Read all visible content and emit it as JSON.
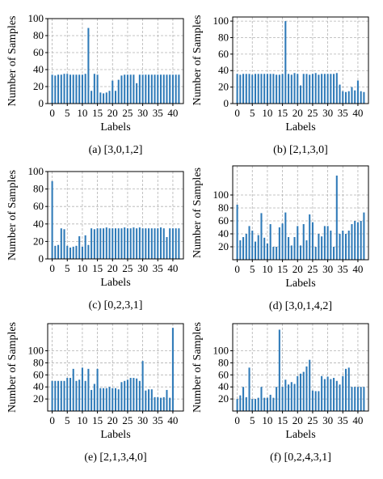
{
  "colors": {
    "bar": "#2e7ab8",
    "grid": "#b3b3b3",
    "axis": "#000000"
  },
  "chart_data": [
    {
      "type": "bar",
      "caption": "(a) [3,0,1,2]",
      "xlabel": "Labels",
      "ylabel": "Number of Samples",
      "xticks": [
        0,
        5,
        10,
        15,
        20,
        25,
        30,
        35,
        40
      ],
      "yticks": [
        0,
        20,
        40,
        60,
        80,
        100
      ],
      "xlim": [
        -1.5,
        43.5
      ],
      "ylim": [
        0,
        100
      ],
      "grid": true,
      "values": [
        34,
        33,
        34,
        34,
        35,
        35,
        34,
        34,
        34,
        34,
        34,
        35,
        89,
        15,
        35,
        34,
        13,
        12,
        13,
        15,
        27,
        15,
        28,
        33,
        34,
        34,
        34,
        34,
        24,
        34,
        34,
        34,
        34,
        34,
        34,
        34,
        34,
        34,
        34,
        34,
        34,
        34,
        34
      ]
    },
    {
      "type": "bar",
      "caption": "(b) [2,1,3,0]",
      "xlabel": "Labels",
      "ylabel": "Number of Samples",
      "xticks": [
        0,
        5,
        10,
        15,
        20,
        25,
        30,
        35,
        40
      ],
      "yticks": [
        0,
        20,
        40,
        60,
        80,
        100
      ],
      "xlim": [
        -1.5,
        43.5
      ],
      "ylim": [
        0,
        105
      ],
      "grid": true,
      "values": [
        36,
        35,
        36,
        36,
        36,
        35,
        36,
        36,
        36,
        36,
        36,
        36,
        36,
        35,
        35,
        36,
        100,
        36,
        35,
        37,
        36,
        22,
        36,
        36,
        35,
        36,
        37,
        35,
        36,
        36,
        36,
        36,
        36,
        37,
        23,
        15,
        14,
        15,
        20,
        16,
        28,
        15,
        14
      ]
    },
    {
      "type": "bar",
      "caption": "(c) [0,2,3,1]",
      "xlabel": "Labels",
      "ylabel": "Number of Samples",
      "xticks": [
        0,
        5,
        10,
        15,
        20,
        25,
        30,
        35,
        40
      ],
      "yticks": [
        0,
        20,
        40,
        60,
        80,
        100
      ],
      "xlim": [
        -1.5,
        43.5
      ],
      "ylim": [
        0,
        100
      ],
      "grid": true,
      "values": [
        89,
        15,
        16,
        35,
        34,
        15,
        13,
        14,
        15,
        26,
        14,
        27,
        16,
        35,
        34,
        35,
        35,
        35,
        36,
        35,
        35,
        35,
        35,
        35,
        36,
        35,
        35,
        36,
        35,
        36,
        35,
        35,
        35,
        35,
        35,
        35,
        36,
        35,
        25,
        35,
        35,
        35,
        35
      ]
    },
    {
      "type": "bar",
      "caption": "(d) [3,0,1,4,2]",
      "xlabel": "Labels",
      "ylabel": "Number of Samples",
      "xticks": [
        0,
        5,
        10,
        15,
        20,
        25,
        30,
        35,
        40
      ],
      "yticks": [
        20,
        40,
        60,
        80,
        100
      ],
      "xlim": [
        -1.5,
        43.5
      ],
      "ylim": [
        0,
        145
      ],
      "grid": true,
      "values": [
        85,
        30,
        35,
        40,
        52,
        45,
        28,
        38,
        72,
        34,
        25,
        55,
        20,
        20,
        50,
        56,
        73,
        35,
        22,
        35,
        52,
        22,
        55,
        30,
        70,
        58,
        20,
        40,
        36,
        52,
        52,
        45,
        20,
        130,
        40,
        45,
        40,
        45,
        55,
        60,
        58,
        60,
        73
      ]
    },
    {
      "type": "bar",
      "caption": "(e) [2,1,3,4,0]",
      "xlabel": "Labels",
      "ylabel": "Number of Samples",
      "xticks": [
        0,
        5,
        10,
        15,
        20,
        25,
        30,
        35,
        40
      ],
      "yticks": [
        20,
        40,
        60,
        80,
        100
      ],
      "xlim": [
        -1.5,
        43.5
      ],
      "ylim": [
        0,
        145
      ],
      "grid": true,
      "values": [
        50,
        50,
        50,
        50,
        50,
        55,
        55,
        70,
        50,
        52,
        72,
        50,
        70,
        35,
        45,
        70,
        38,
        38,
        38,
        40,
        38,
        38,
        36,
        48,
        50,
        52,
        55,
        55,
        54,
        50,
        83,
        34,
        36,
        36,
        23,
        23,
        22,
        23,
        35,
        22,
        138
      ]
    },
    {
      "type": "bar",
      "caption": "(f) [0,2,4,3,1]",
      "xlabel": "Labels",
      "ylabel": "Number of Samples",
      "xticks": [
        0,
        5,
        10,
        15,
        20,
        25,
        30,
        35,
        40
      ],
      "yticks": [
        20,
        40,
        60,
        80,
        100
      ],
      "xlim": [
        -1.5,
        43.5
      ],
      "ylim": [
        0,
        145
      ],
      "grid": true,
      "values": [
        20,
        26,
        40,
        23,
        72,
        20,
        20,
        22,
        40,
        22,
        22,
        27,
        22,
        40,
        135,
        40,
        52,
        44,
        48,
        45,
        58,
        62,
        65,
        74,
        85,
        34,
        33,
        33,
        58,
        53,
        57,
        53,
        55,
        50,
        44,
        58,
        70,
        72,
        40,
        40,
        40,
        40,
        40
      ]
    }
  ]
}
